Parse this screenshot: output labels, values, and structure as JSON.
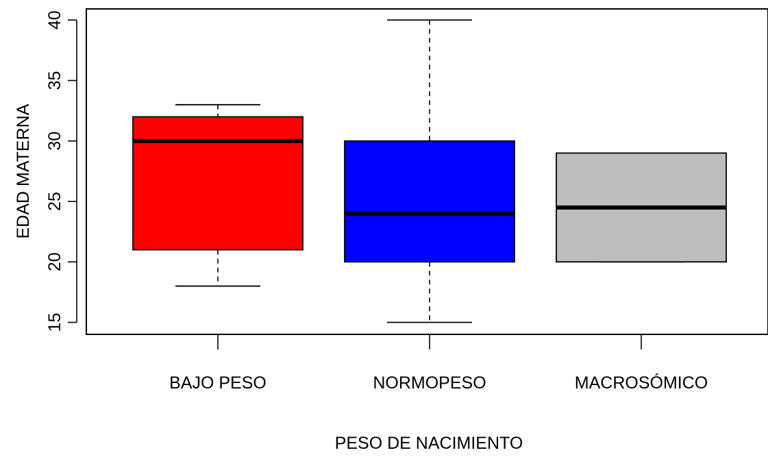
{
  "chart_data": {
    "type": "boxplot",
    "title": "",
    "xlabel": "PESO DE NACIMIENTO",
    "ylabel": "EDAD MATERNA",
    "ylim": [
      14,
      41
    ],
    "yticks": [
      15,
      20,
      25,
      30,
      35,
      40
    ],
    "grid": false,
    "categories": [
      "BAJO PESO",
      "NORMOPESO",
      "MACROSÓMICO"
    ],
    "boxes": [
      {
        "category": "BAJO PESO",
        "whisker_low": 18,
        "q1": 21,
        "median": 30,
        "q3": 32,
        "whisker_high": 33,
        "color": "#ff0000"
      },
      {
        "category": "NORMOPESO",
        "whisker_low": 15,
        "q1": 20,
        "median": 24,
        "q3": 30,
        "whisker_high": 40,
        "color": "#0000ff"
      },
      {
        "category": "MACROSÓMICO",
        "whisker_low": 20,
        "q1": 20,
        "median": 24.5,
        "q3": 29,
        "whisker_high": 29,
        "color": "#bebebe"
      }
    ]
  }
}
